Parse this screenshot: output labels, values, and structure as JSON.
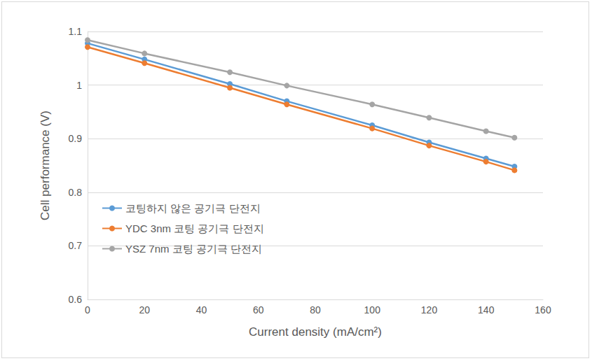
{
  "chart_data": {
    "type": "line",
    "x_label": "Current density (mA/cm²)",
    "y_label": "Cell performance (V)",
    "x": [
      0,
      20,
      50,
      70,
      100,
      120,
      140,
      150
    ],
    "series": [
      {
        "name": "코팅하지 않은 공기극 단전지",
        "color": "#5b9bd5",
        "values": [
          1.078,
          1.048,
          1.002,
          0.97,
          0.925,
          0.893,
          0.863,
          0.848
        ]
      },
      {
        "name": "YDC 3nm 코팅 공기극 단전지",
        "color": "#ed7d31",
        "values": [
          1.071,
          1.041,
          0.995,
          0.964,
          0.919,
          0.887,
          0.857,
          0.841
        ]
      },
      {
        "name": "YSZ 7nm 코팅 공기극 단전지",
        "color": "#a5a5a5",
        "values": [
          1.084,
          1.059,
          1.024,
          0.999,
          0.964,
          0.939,
          0.914,
          0.902
        ]
      }
    ],
    "xlim": [
      0,
      160
    ],
    "xticks": [
      0,
      20,
      40,
      60,
      80,
      100,
      120,
      140,
      160
    ],
    "ylim": [
      0.6,
      1.1
    ],
    "yticks": [
      0.6,
      0.7,
      0.8,
      0.9,
      1,
      1.1
    ],
    "grid": true,
    "legend": "left",
    "marker": "circle",
    "line_style": "solid"
  }
}
